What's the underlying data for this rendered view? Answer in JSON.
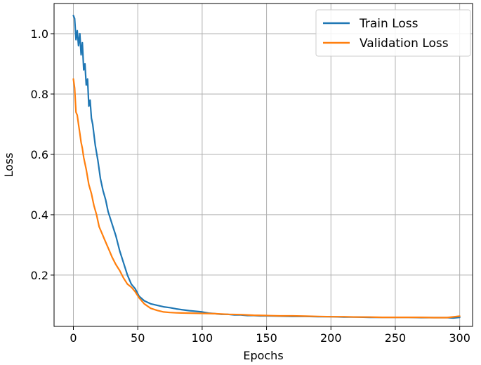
{
  "chart_data": {
    "type": "line",
    "title": "",
    "xlabel": "Epochs",
    "ylabel": "Loss",
    "xlim": [
      -15,
      310
    ],
    "ylim": [
      0.03,
      1.1
    ],
    "xticks": [
      0,
      50,
      100,
      150,
      200,
      250,
      300
    ],
    "yticks": [
      0.2,
      0.4,
      0.6,
      0.8,
      1.0
    ],
    "xtick_labels": [
      "0",
      "50",
      "100",
      "150",
      "200",
      "250",
      "300"
    ],
    "ytick_labels": [
      "0.2",
      "0.4",
      "0.6",
      "0.8",
      "1.0"
    ],
    "grid": true,
    "legend_position": "top-right",
    "series": [
      {
        "name": "Train Loss",
        "color": "#1f77b4",
        "x": [
          0,
          1,
          2,
          3,
          4,
          5,
          6,
          7,
          8,
          9,
          10,
          11,
          12,
          13,
          14,
          15,
          17,
          19,
          21,
          23,
          25,
          27,
          30,
          33,
          36,
          39,
          42,
          45,
          48,
          51,
          55,
          60,
          65,
          70,
          75,
          80,
          85,
          90,
          95,
          100,
          105,
          110,
          115,
          120,
          125,
          130,
          135,
          140,
          145,
          150,
          160,
          170,
          180,
          190,
          200,
          210,
          220,
          230,
          240,
          250,
          260,
          270,
          280,
          290,
          295,
          300
        ],
        "y": [
          1.06,
          1.05,
          0.98,
          1.01,
          0.96,
          1.0,
          0.93,
          0.97,
          0.88,
          0.9,
          0.83,
          0.85,
          0.76,
          0.78,
          0.72,
          0.7,
          0.63,
          0.58,
          0.52,
          0.48,
          0.45,
          0.41,
          0.37,
          0.33,
          0.28,
          0.24,
          0.2,
          0.17,
          0.155,
          0.13,
          0.115,
          0.105,
          0.1,
          0.095,
          0.092,
          0.088,
          0.085,
          0.082,
          0.08,
          0.078,
          0.074,
          0.072,
          0.07,
          0.07,
          0.068,
          0.068,
          0.066,
          0.066,
          0.065,
          0.065,
          0.064,
          0.063,
          0.063,
          0.062,
          0.062,
          0.061,
          0.061,
          0.06,
          0.06,
          0.06,
          0.06,
          0.059,
          0.059,
          0.059,
          0.058,
          0.06
        ]
      },
      {
        "name": "Validation Loss",
        "color": "#ff7f0e",
        "x": [
          0,
          1,
          2,
          3,
          4,
          5,
          6,
          7,
          8,
          9,
          10,
          12,
          14,
          16,
          18,
          20,
          22,
          24,
          26,
          28,
          30,
          33,
          36,
          39,
          42,
          45,
          48,
          51,
          55,
          60,
          65,
          70,
          75,
          80,
          90,
          100,
          110,
          120,
          130,
          140,
          150,
          160,
          170,
          180,
          190,
          200,
          210,
          220,
          230,
          240,
          250,
          260,
          270,
          280,
          290,
          300
        ],
        "y": [
          0.85,
          0.82,
          0.74,
          0.73,
          0.7,
          0.67,
          0.64,
          0.62,
          0.59,
          0.57,
          0.55,
          0.5,
          0.47,
          0.43,
          0.4,
          0.36,
          0.34,
          0.32,
          0.3,
          0.28,
          0.26,
          0.235,
          0.215,
          0.19,
          0.17,
          0.16,
          0.145,
          0.125,
          0.105,
          0.09,
          0.083,
          0.078,
          0.076,
          0.075,
          0.074,
          0.073,
          0.072,
          0.07,
          0.069,
          0.067,
          0.066,
          0.065,
          0.065,
          0.064,
          0.063,
          0.062,
          0.062,
          0.061,
          0.061,
          0.06,
          0.06,
          0.06,
          0.06,
          0.059,
          0.059,
          0.064
        ]
      }
    ]
  }
}
